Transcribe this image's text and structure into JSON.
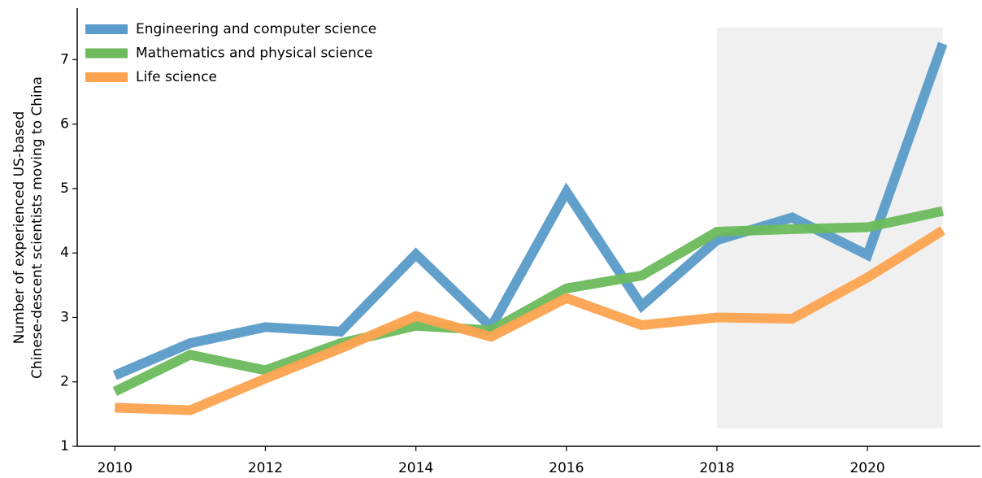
{
  "chart_data": {
    "type": "line",
    "y_label": [
      "Number of experienced US-based",
      "Chinese-descent scientists moving to China"
    ],
    "x": [
      2010,
      2011,
      2012,
      2013,
      2014,
      2015,
      2016,
      2017,
      2018,
      2019,
      2020,
      2021
    ],
    "series": [
      {
        "name": "Engineering and computer science",
        "color": "#5a9bc9",
        "values": [
          2.1,
          2.6,
          2.85,
          2.78,
          3.98,
          2.85,
          4.95,
          3.18,
          4.2,
          4.55,
          3.97,
          7.25
        ]
      },
      {
        "name": "Mathematics and physical science",
        "color": "#6cba5c",
        "values": [
          1.85,
          2.42,
          2.18,
          2.6,
          2.87,
          2.8,
          3.45,
          3.65,
          4.33,
          4.37,
          4.4,
          4.65
        ]
      },
      {
        "name": "Life science",
        "color": "#fca34f",
        "values": [
          1.6,
          1.56,
          2.05,
          2.52,
          3.02,
          2.7,
          3.3,
          2.88,
          3.0,
          2.98,
          3.62,
          4.35
        ]
      }
    ],
    "xlim": [
      2009.5,
      2021.5
    ],
    "xticks": [
      2010,
      2012,
      2014,
      2016,
      2018,
      2020
    ],
    "ylim": [
      1,
      7.8
    ],
    "yticks": [
      1,
      2,
      3,
      4,
      5,
      6,
      7
    ],
    "shaded_region": {
      "x": [
        2018,
        2021
      ],
      "y": [
        1.28,
        7.5
      ],
      "color": "#f0f0f0"
    },
    "legend": "upper left",
    "grid": false
  }
}
